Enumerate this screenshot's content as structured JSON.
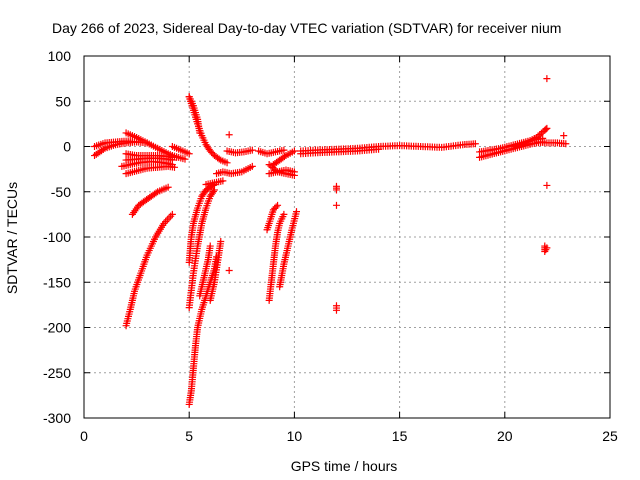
{
  "chart_data": {
    "type": "scatter",
    "title": "Day 266 of 2023, Sidereal Day-to-day VTEC variation (SDTVAR) for receiver nium",
    "xlabel": "GPS time / hours",
    "ylabel": "SDTVAR / TECUs",
    "xlim": [
      0,
      25
    ],
    "ylim": [
      -300,
      100
    ],
    "xticks": [
      0,
      5,
      10,
      15,
      20,
      25
    ],
    "yticks": [
      100,
      50,
      0,
      -50,
      -100,
      -150,
      -200,
      -250,
      -300
    ],
    "grid": true,
    "marker": "+",
    "color": "#ff0000",
    "series": [
      {
        "name": "SDTVAR",
        "segments": [
          [
            [
              0.5,
              -10
            ],
            [
              1.0,
              -2
            ],
            [
              1.5,
              2
            ],
            [
              2.0,
              4
            ],
            [
              2.5,
              5
            ],
            [
              3.0,
              4
            ]
          ],
          [
            [
              0.5,
              0
            ],
            [
              1.0,
              4
            ],
            [
              1.5,
              5
            ],
            [
              2.0,
              6
            ],
            [
              2.5,
              5
            ]
          ],
          [
            [
              2.0,
              15
            ],
            [
              2.5,
              10
            ],
            [
              3.0,
              4
            ],
            [
              3.5,
              -2
            ],
            [
              4.0,
              -8
            ],
            [
              4.4,
              -12
            ]
          ],
          [
            [
              2.0,
              -8
            ],
            [
              2.5,
              -10
            ],
            [
              3.0,
              -10
            ],
            [
              3.5,
              -10
            ],
            [
              4.0,
              -11
            ],
            [
              4.2,
              -12
            ]
          ],
          [
            [
              2.0,
              -15
            ],
            [
              2.5,
              -14
            ],
            [
              3.0,
              -13
            ],
            [
              3.5,
              -13
            ],
            [
              4.0,
              -14
            ],
            [
              4.2,
              -15
            ]
          ],
          [
            [
              1.8,
              -22
            ],
            [
              2.2,
              -20
            ],
            [
              2.6,
              -18
            ],
            [
              3.0,
              -17
            ],
            [
              3.4,
              -17
            ],
            [
              3.8,
              -18
            ],
            [
              4.2,
              -20
            ]
          ],
          [
            [
              2.0,
              -30
            ],
            [
              2.5,
              -27
            ],
            [
              3.0,
              -24
            ],
            [
              3.5,
              -23
            ],
            [
              4.0,
              -22
            ],
            [
              4.3,
              -23
            ]
          ],
          [
            [
              2.3,
              -75
            ],
            [
              2.6,
              -65
            ],
            [
              2.9,
              -60
            ],
            [
              3.2,
              -55
            ],
            [
              3.5,
              -50
            ],
            [
              3.8,
              -47
            ],
            [
              4.0,
              -45
            ]
          ],
          [
            [
              2.0,
              -198
            ],
            [
              2.2,
              -180
            ],
            [
              2.4,
              -160
            ],
            [
              2.7,
              -140
            ],
            [
              3.0,
              -120
            ],
            [
              3.4,
              -100
            ],
            [
              3.8,
              -85
            ],
            [
              4.2,
              -75
            ]
          ],
          [
            [
              4.2,
              0
            ],
            [
              4.5,
              -3
            ],
            [
              4.8,
              -6
            ],
            [
              5.0,
              -8
            ]
          ],
          [
            [
              4.2,
              -10
            ],
            [
              4.5,
              -12
            ],
            [
              4.8,
              -14
            ]
          ],
          [
            [
              5.0,
              55
            ],
            [
              5.2,
              40
            ],
            [
              5.4,
              25
            ],
            [
              5.6,
              12
            ],
            [
              5.8,
              2
            ],
            [
              6.0,
              -5
            ],
            [
              6.2,
              -10
            ],
            [
              6.5,
              -15
            ],
            [
              6.8,
              -18
            ]
          ],
          [
            [
              5.0,
              55
            ],
            [
              5.2,
              45
            ],
            [
              5.4,
              30
            ],
            [
              5.5,
              15
            ]
          ],
          [
            [
              5.0,
              -128
            ],
            [
              5.1,
              -100
            ],
            [
              5.2,
              -85
            ],
            [
              5.4,
              -68
            ],
            [
              5.6,
              -55
            ],
            [
              5.8,
              -48
            ],
            [
              6.0,
              -45
            ],
            [
              6.2,
              -42
            ]
          ],
          [
            [
              5.0,
              -178
            ],
            [
              5.2,
              -140
            ],
            [
              5.4,
              -110
            ],
            [
              5.6,
              -85
            ],
            [
              5.8,
              -68
            ],
            [
              6.0,
              -55
            ],
            [
              6.2,
              -48
            ]
          ],
          [
            [
              5.0,
              -285
            ],
            [
              5.1,
              -270
            ],
            [
              5.2,
              -245
            ],
            [
              5.3,
              -220
            ],
            [
              5.4,
              -200
            ],
            [
              5.6,
              -180
            ],
            [
              5.8,
              -165
            ],
            [
              6.0,
              -150
            ],
            [
              6.2,
              -135
            ],
            [
              6.3,
              -122
            ]
          ],
          [
            [
              5.5,
              -165
            ],
            [
              5.7,
              -145
            ],
            [
              5.9,
              -125
            ],
            [
              6.0,
              -110
            ]
          ],
          [
            [
              6.0,
              -170
            ],
            [
              6.2,
              -150
            ],
            [
              6.4,
              -120
            ],
            [
              6.5,
              -105
            ]
          ],
          [
            [
              5.8,
              -42
            ],
            [
              6.2,
              -40
            ],
            [
              6.6,
              -38
            ]
          ],
          [
            [
              6.3,
              -30
            ],
            [
              6.6,
              -28
            ],
            [
              7.0,
              -30
            ],
            [
              7.5,
              -28
            ],
            [
              8.0,
              -22
            ]
          ],
          [
            [
              6.8,
              -5
            ],
            [
              7.2,
              -7
            ],
            [
              7.6,
              -6
            ],
            [
              8.0,
              -4
            ]
          ],
          [
            [
              8.3,
              -5
            ],
            [
              8.7,
              -8
            ],
            [
              9.1,
              -6
            ],
            [
              9.5,
              -4
            ]
          ],
          [
            [
              6.9,
              13
            ]
          ],
          [
            [
              6.9,
              -137
            ]
          ],
          [
            [
              8.8,
              -20
            ],
            [
              9.2,
              -28
            ],
            [
              9.6,
              -30
            ],
            [
              10.0,
              -32
            ]
          ],
          [
            [
              8.8,
              -30
            ],
            [
              9.2,
              -28
            ],
            [
              9.6,
              -26
            ],
            [
              10.0,
              -28
            ]
          ],
          [
            [
              9.0,
              -20
            ],
            [
              9.3,
              -15
            ],
            [
              9.6,
              -10
            ],
            [
              10.0,
              -5
            ]
          ],
          [
            [
              8.8,
              -170
            ],
            [
              8.9,
              -150
            ],
            [
              9.0,
              -130
            ],
            [
              9.1,
              -110
            ],
            [
              9.2,
              -95
            ],
            [
              9.3,
              -85
            ],
            [
              9.5,
              -75
            ]
          ],
          [
            [
              8.7,
              -92
            ],
            [
              8.8,
              -85
            ],
            [
              9.0,
              -70
            ],
            [
              9.2,
              -65
            ]
          ],
          [
            [
              9.3,
              -155
            ],
            [
              9.5,
              -130
            ],
            [
              9.7,
              -110
            ],
            [
              9.9,
              -90
            ],
            [
              10.1,
              -72
            ]
          ],
          [
            [
              10.3,
              -5
            ],
            [
              11.0,
              -4
            ],
            [
              12.0,
              -3
            ],
            [
              13.0,
              -2
            ],
            [
              14.0,
              0
            ],
            [
              15.0,
              1
            ],
            [
              16.0,
              0
            ],
            [
              17.0,
              -1
            ],
            [
              18.0,
              2
            ],
            [
              18.6,
              3
            ]
          ],
          [
            [
              10.3,
              -8
            ],
            [
              11.0,
              -7
            ],
            [
              12.0,
              -6
            ],
            [
              13.0,
              -5
            ],
            [
              14.0,
              -3
            ]
          ],
          [
            [
              12.0,
              -44
            ],
            [
              12.0,
              -48
            ]
          ],
          [
            [
              12.0,
              -65
            ]
          ],
          [
            [
              12.0,
              -176
            ],
            [
              12.0,
              -181
            ]
          ],
          [
            [
              18.8,
              -12
            ],
            [
              19.3,
              -9
            ],
            [
              19.8,
              -6
            ],
            [
              20.3,
              -3
            ],
            [
              20.8,
              0
            ],
            [
              21.3,
              3
            ],
            [
              21.8,
              5
            ]
          ],
          [
            [
              18.8,
              -6
            ],
            [
              19.3,
              -4
            ],
            [
              19.8,
              -2
            ],
            [
              20.3,
              1
            ],
            [
              20.8,
              4
            ],
            [
              21.3,
              7
            ],
            [
              21.8,
              9
            ]
          ],
          [
            [
              20.5,
              0
            ],
            [
              21.0,
              4
            ],
            [
              21.5,
              10
            ],
            [
              21.9,
              18
            ],
            [
              22.0,
              20
            ]
          ],
          [
            [
              22.0,
              75
            ]
          ],
          [
            [
              22.0,
              -43
            ]
          ],
          [
            [
              21.9,
              -110
            ],
            [
              21.9,
              -116
            ],
            [
              22.0,
              -112
            ]
          ],
          [
            [
              21.6,
              5
            ],
            [
              22.0,
              4
            ],
            [
              22.5,
              4
            ],
            [
              22.9,
              3
            ]
          ],
          [
            [
              22.8,
              12
            ]
          ]
        ]
      }
    ]
  }
}
